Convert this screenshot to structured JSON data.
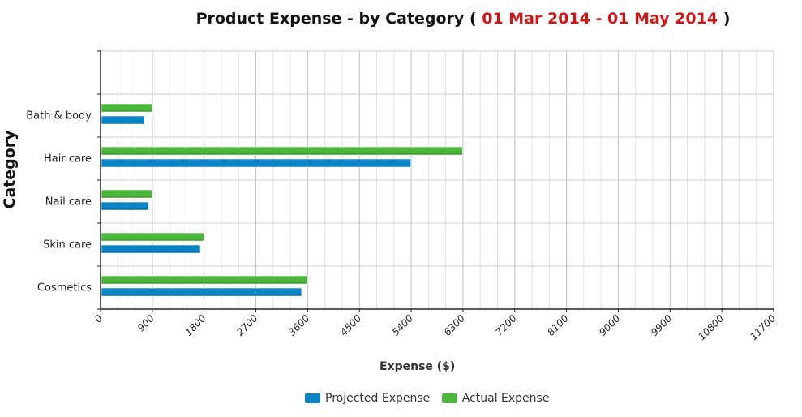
{
  "colors": {
    "projected": "#0a84c6",
    "actual": "#4cb63c"
  },
  "chart_data": {
    "type": "bar",
    "orientation": "horizontal",
    "title": "Product Expense - by Category",
    "title_range_prefix": "( ",
    "title_range": "01 Mar 2014 - 01 May 2014",
    "title_range_suffix": " )",
    "xlabel": "Expense ($)",
    "ylabel": "Category",
    "categories": [
      "Cosmetics",
      "Skin care",
      "Nail care",
      "Hair care",
      "Bath & body"
    ],
    "series": [
      {
        "name": "Projected Expense",
        "color": "#0a84c6",
        "values": [
          3480,
          1720,
          820,
          5380,
          750
        ]
      },
      {
        "name": "Actual Expense",
        "color": "#4cb63c",
        "values": [
          3580,
          1780,
          880,
          6280,
          890
        ]
      }
    ],
    "xlim": [
      0,
      11700
    ],
    "x_ticks": [
      "0",
      "900",
      "1800",
      "2700",
      "3600",
      "4500",
      "5400",
      "6300",
      "7200",
      "8100",
      "9000",
      "9900",
      "10800",
      "11700"
    ],
    "grid": true,
    "legend_position": "bottom"
  }
}
